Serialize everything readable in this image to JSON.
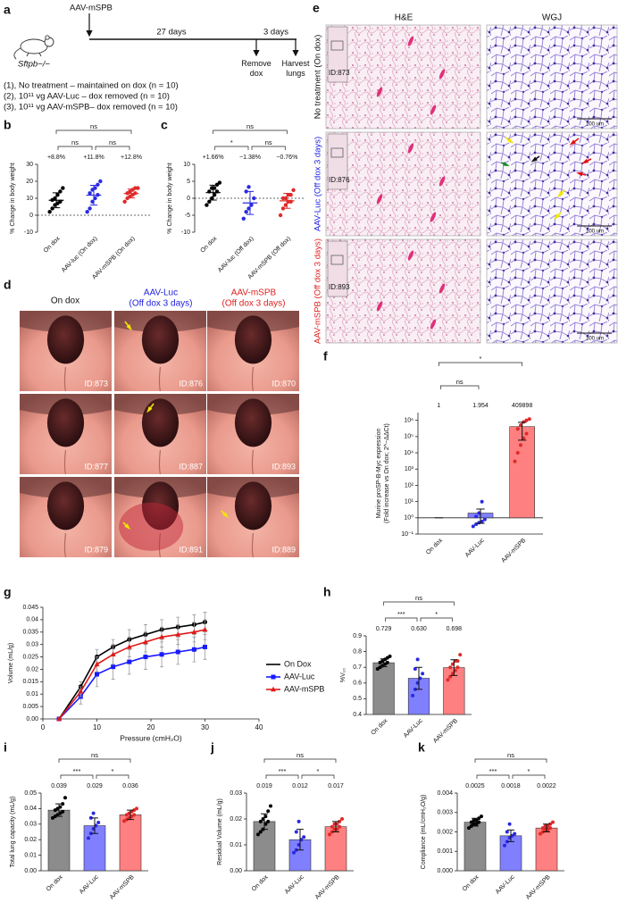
{
  "panel_a": {
    "label": "a",
    "strain": "Sftpb−/−",
    "injection": "AAV-mSPB",
    "interval_1": "27 days",
    "interval_2": "3 days",
    "step_1": "Remove dox",
    "step_2": "Harvest lungs",
    "groups": [
      "(1), No treatment – maintained on dox (n = 10)",
      "(2), 10¹¹ vg AAV-Luc – dox removed (n = 10)",
      "(3), 10¹¹ vg AAV-mSPB– dox removed (n = 10)"
    ]
  },
  "panel_d": {
    "label": "d",
    "columns": [
      {
        "title": "On dox"
      },
      {
        "title": "AAV-Luc",
        "subtitle": "(Off dox 3 days)"
      },
      {
        "title": "AAV-mSPB",
        "subtitle": "(Off dox 3 days)"
      }
    ],
    "ids": [
      [
        "ID:873",
        "ID:876",
        "ID:870"
      ],
      [
        "ID:877",
        "ID:887",
        "ID:893"
      ],
      [
        "ID:879",
        "ID:891",
        "ID:889"
      ]
    ]
  },
  "panel_e": {
    "label": "e",
    "columns": [
      "H&E",
      "WGJ"
    ],
    "rows": [
      {
        "label": "No treatment (On dox)",
        "id": "ID:873"
      },
      {
        "label": "AAV-Luc (Off dox 3 days)",
        "id": "ID:876"
      },
      {
        "label": "AAV-mSPB (Off dox 3 days)",
        "id": "ID:893"
      }
    ],
    "scale_bar": "100 um"
  },
  "chart_data": [
    {
      "label": "b",
      "type": "dot",
      "ylabel": "% Change in body weight",
      "categories": [
        "On dox",
        "AAV-luc (On dox)",
        "AAV-mSPB (On dox)"
      ],
      "values": [
        8.8,
        11.8,
        12.8
      ],
      "value_labels": [
        "+8.8%",
        "+11.8%",
        "+12.8%"
      ],
      "errors": [
        4.4,
        5.8,
        2.6
      ],
      "points": [
        [
          2,
          4,
          6,
          7,
          8,
          9,
          10,
          12,
          14,
          16
        ],
        [
          2,
          4,
          8,
          10,
          12,
          13,
          15,
          16,
          18,
          20
        ],
        [
          8,
          10,
          11,
          12,
          13,
          13,
          14,
          15,
          16,
          16
        ]
      ],
      "colors": [
        "#000000",
        "#2a2ae0",
        "#e02a2a"
      ],
      "ylim": [
        -10,
        30
      ],
      "yticks": [
        -10,
        0,
        10,
        20,
        30
      ],
      "reference_line": 0,
      "significance": [
        "ns",
        "ns",
        "ns"
      ]
    },
    {
      "label": "c",
      "type": "dot",
      "ylabel": "% Change in body weight",
      "categories": [
        "On dox",
        "AAV-luc (Off dox)",
        "AAV-mSPB (Off dox)"
      ],
      "values": [
        1.66,
        -1.38,
        -0.76
      ],
      "value_labels": [
        "+1.66%",
        "−1.38%",
        "−0.76%"
      ],
      "errors": [
        2.2,
        3.4,
        2.2
      ],
      "points": [
        [
          -2,
          -1,
          0,
          1,
          2,
          2,
          3,
          3,
          4,
          4.6
        ],
        [
          -6,
          -4,
          -3,
          -2,
          0,
          2,
          3.34
        ],
        [
          -5,
          -3,
          -2,
          -1,
          -1,
          0,
          0,
          1,
          1,
          2.4
        ]
      ],
      "colors": [
        "#000000",
        "#2a2ae0",
        "#e02a2a"
      ],
      "ylim": [
        -10,
        10
      ],
      "yticks": [
        -10,
        -5,
        0,
        5,
        10
      ],
      "reference_line": 0,
      "significance": [
        "*",
        "ns",
        "ns"
      ]
    },
    {
      "label": "f",
      "type": "bar",
      "log_y": true,
      "ylabel": [
        "Murine proSP-B-Myc expression",
        "(Fold increase vs On dox; 2^−ΔΔCt)"
      ],
      "categories": [
        "On dox",
        "AAV-Luc",
        "AAV-mSPB"
      ],
      "values": [
        1,
        1.954,
        409898
      ],
      "errors": [
        0,
        1.5,
        350000
      ],
      "points": [
        [],
        [
          0.3,
          0.4,
          0.5,
          0.6,
          0.8,
          1.2,
          2,
          9.8
        ],
        [
          3000,
          10000,
          30000,
          80000,
          150000,
          300000,
          500000,
          800000,
          1000000,
          1200000
        ]
      ],
      "colors": [
        "#8c8c8c",
        "#8080ff",
        "#ff8080"
      ],
      "point_colors": [
        "#000000",
        "#2a2ae0",
        "#e02a2a"
      ],
      "ylim": [
        0.1,
        3000000
      ],
      "yticks": [
        {
          "value": 0.1,
          "label": "10⁻¹"
        },
        {
          "value": 1,
          "label": "10⁰"
        },
        {
          "value": 10,
          "label": "10¹"
        },
        {
          "value": 100,
          "label": "10²"
        },
        {
          "value": 1000,
          "label": "10³"
        },
        {
          "value": 10000,
          "label": "10⁴"
        },
        {
          "value": 100000,
          "label": "10⁵"
        },
        {
          "value": 1000000,
          "label": "10⁶"
        }
      ],
      "reference_line": 1,
      "significance": [
        "ns",
        "*"
      ]
    },
    {
      "label": "g",
      "type": "line",
      "ylabel": "Volume (mL/g)",
      "xlabel": "Pressure (cmH₂O)",
      "x": [
        3,
        7,
        10,
        13,
        16,
        19,
        22,
        25,
        28,
        30
      ],
      "series": [
        {
          "name": "On Dox",
          "color": "#000000",
          "marker": "circle",
          "values": [
            0,
            0.013,
            0.025,
            0.029,
            0.032,
            0.034,
            0.036,
            0.037,
            0.038,
            0.039
          ],
          "errors": [
            0,
            0.002,
            0.003,
            0.003,
            0.004,
            0.004,
            0.004,
            0.004,
            0.004,
            0.004
          ]
        },
        {
          "name": "AAV-Luc",
          "color": "#1a1aff",
          "marker": "square",
          "values": [
            0,
            0.009,
            0.018,
            0.021,
            0.023,
            0.025,
            0.026,
            0.027,
            0.028,
            0.029
          ],
          "errors": [
            0,
            0.003,
            0.005,
            0.005,
            0.005,
            0.005,
            0.005,
            0.005,
            0.005,
            0.005
          ]
        },
        {
          "name": "AAV-mSPB",
          "color": "#e01a1a",
          "marker": "triangle",
          "values": [
            0,
            0.011,
            0.022,
            0.026,
            0.029,
            0.031,
            0.033,
            0.034,
            0.035,
            0.036
          ],
          "errors": [
            0,
            0.002,
            0.003,
            0.004,
            0.004,
            0.004,
            0.004,
            0.004,
            0.004,
            0.004
          ]
        }
      ],
      "xlim": [
        0,
        40
      ],
      "xticks": [
        0,
        10,
        20,
        30,
        40
      ],
      "ylim": [
        0,
        0.045
      ],
      "yticks": [
        {
          "value": 0,
          "label": "0.00"
        },
        0.005,
        0.01,
        0.015,
        0.02,
        0.025,
        0.03,
        0.035,
        0.04,
        0.045
      ],
      "legend": "right"
    },
    {
      "label": "h",
      "type": "bar",
      "ylabel": "%V₁₀",
      "categories": [
        "On dox",
        "AAV-Luc",
        "AAV-mSPB"
      ],
      "values": [
        0.729,
        0.63,
        0.698
      ],
      "value_labels": [
        "0.729",
        "0.630",
        "0.698"
      ],
      "errors": [
        0.025,
        0.07,
        0.05
      ],
      "points": [
        [
          0.69,
          0.7,
          0.71,
          0.72,
          0.73,
          0.73,
          0.74,
          0.75,
          0.76,
          0.77
        ],
        [
          0.52,
          0.56,
          0.6,
          0.63,
          0.66,
          0.69,
          0.75
        ],
        [
          0.62,
          0.64,
          0.66,
          0.68,
          0.7,
          0.7,
          0.72,
          0.74,
          0.74,
          0.78
        ]
      ],
      "colors": [
        "#8c8c8c",
        "#8080ff",
        "#ff8080"
      ],
      "point_colors": [
        "#000000",
        "#2a2ae0",
        "#e02a2a"
      ],
      "ylim": [
        0.4,
        0.9
      ],
      "yticks": [
        0.4,
        0.5,
        0.6,
        0.7,
        0.8,
        0.9
      ],
      "significance": [
        "***",
        "*",
        "ns"
      ]
    },
    {
      "label": "i",
      "type": "bar",
      "ylabel": "Total lung capacity (mL/g)",
      "categories": [
        "On dox",
        "AAV-Luc",
        "AAV-mSPB"
      ],
      "values": [
        0.039,
        0.029,
        0.036
      ],
      "errors": [
        0.004,
        0.005,
        0.003
      ],
      "points": [
        [
          0.034,
          0.035,
          0.036,
          0.037,
          0.038,
          0.039,
          0.04,
          0.041,
          0.043,
          0.047
        ],
        [
          0.021,
          0.024,
          0.027,
          0.029,
          0.031,
          0.034,
          0.037
        ],
        [
          0.032,
          0.033,
          0.034,
          0.035,
          0.036,
          0.036,
          0.037,
          0.038,
          0.039,
          0.04
        ]
      ],
      "colors": [
        "#8c8c8c",
        "#8080ff",
        "#ff8080"
      ],
      "point_colors": [
        "#000000",
        "#2a2ae0",
        "#e02a2a"
      ],
      "ylim": [
        0,
        0.05
      ],
      "yticks": [
        {
          "value": 0,
          "label": "0.00"
        },
        0.01,
        0.02,
        0.03,
        0.04,
        0.05
      ],
      "significance": [
        "***",
        "*",
        "ns"
      ]
    },
    {
      "label": "j",
      "type": "bar",
      "ylabel": "Residual Volume (mL/g)",
      "categories": [
        "On dox",
        "AAV-Luc",
        "AAV-mSPB"
      ],
      "values": [
        0.019,
        0.012,
        0.017
      ],
      "errors": [
        0.003,
        0.004,
        0.002
      ],
      "points": [
        [
          0.014,
          0.015,
          0.016,
          0.018,
          0.019,
          0.019,
          0.02,
          0.021,
          0.023,
          0.025
        ],
        [
          0.007,
          0.008,
          0.01,
          0.012,
          0.013,
          0.015,
          0.019
        ],
        [
          0.014,
          0.015,
          0.016,
          0.016,
          0.017,
          0.017,
          0.018,
          0.018,
          0.019,
          0.02
        ]
      ],
      "colors": [
        "#8c8c8c",
        "#8080ff",
        "#ff8080"
      ],
      "point_colors": [
        "#000000",
        "#2a2ae0",
        "#e02a2a"
      ],
      "ylim": [
        0,
        0.03
      ],
      "yticks": [
        {
          "value": 0,
          "label": "0.00"
        },
        0.01,
        0.02,
        0.03
      ],
      "significance": [
        "***",
        "*",
        "ns"
      ]
    },
    {
      "label": "k",
      "type": "bar",
      "ylabel": "Compliance (mL/cmH₂O/g)",
      "categories": [
        "On dox",
        "AAV-Luc",
        "AAV-mSPB"
      ],
      "values": [
        0.0025,
        0.0018,
        0.0022
      ],
      "errors": [
        0.0002,
        0.0003,
        0.0002
      ],
      "points": [
        [
          0.0022,
          0.0023,
          0.0024,
          0.0024,
          0.0025,
          0.0025,
          0.0026,
          0.0026,
          0.0027,
          0.0028
        ],
        [
          0.0013,
          0.0015,
          0.0017,
          0.0018,
          0.0019,
          0.002,
          0.0024
        ],
        [
          0.0019,
          0.002,
          0.0021,
          0.0021,
          0.0022,
          0.0022,
          0.0023,
          0.0023,
          0.0024,
          0.0025
        ]
      ],
      "colors": [
        "#8c8c8c",
        "#8080ff",
        "#ff8080"
      ],
      "point_colors": [
        "#000000",
        "#2a2ae0",
        "#e02a2a"
      ],
      "ylim": [
        0,
        0.004
      ],
      "yticks": [
        {
          "value": 0,
          "label": "0.000"
        },
        0.001,
        0.002,
        0.003,
        0.004
      ],
      "significance": [
        "***",
        "*",
        "ns"
      ]
    }
  ]
}
